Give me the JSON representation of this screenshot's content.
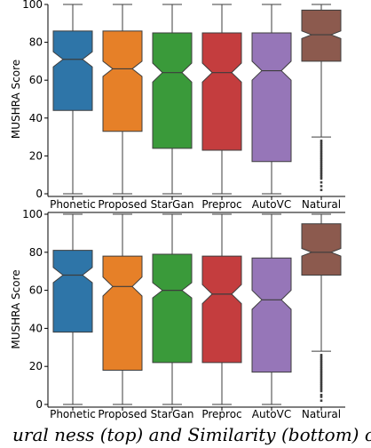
{
  "chart_data": [
    {
      "type": "box",
      "notched": true,
      "ylabel": "MUSHRA Score",
      "ylim": [
        0,
        100
      ],
      "yticks": [
        0,
        20,
        40,
        60,
        80,
        100
      ],
      "categories": [
        "Phonetic",
        "Proposed",
        "StarGan",
        "Preproc",
        "AutoVC",
        "Natural"
      ],
      "colors": [
        "#2e75a8",
        "#e68028",
        "#3a9a3a",
        "#c43d3e",
        "#9676b8",
        "#8c5a4e"
      ],
      "boxes": [
        {
          "whislo": 0,
          "q1": 44,
          "med": 71,
          "q3": 86,
          "whishi": 100,
          "notch_lo": 67,
          "notch_hi": 75,
          "fliers": []
        },
        {
          "whislo": 0,
          "q1": 33,
          "med": 66,
          "q3": 86,
          "whishi": 100,
          "notch_lo": 62,
          "notch_hi": 70,
          "fliers": []
        },
        {
          "whislo": 0,
          "q1": 24,
          "med": 64,
          "q3": 85,
          "whishi": 100,
          "notch_lo": 59,
          "notch_hi": 69,
          "fliers": []
        },
        {
          "whislo": 0,
          "q1": 23,
          "med": 64,
          "q3": 85,
          "whishi": 100,
          "notch_lo": 59,
          "notch_hi": 69,
          "fliers": []
        },
        {
          "whislo": 0,
          "q1": 17,
          "med": 65,
          "q3": 85,
          "whishi": 100,
          "notch_lo": 60,
          "notch_hi": 70,
          "fliers": []
        },
        {
          "whislo": 30,
          "q1": 70,
          "med": 84,
          "q3": 97,
          "whishi": 100,
          "notch_lo": 82,
          "notch_hi": 86,
          "fliers": [
            2,
            4,
            6,
            8,
            9,
            10,
            11,
            12,
            13,
            14,
            15,
            16,
            17,
            18,
            19,
            20,
            21,
            22,
            23,
            24,
            25,
            26,
            27,
            28
          ]
        }
      ]
    },
    {
      "type": "box",
      "notched": true,
      "ylabel": "MUSHRA Score",
      "ylim": [
        0,
        100
      ],
      "yticks": [
        0,
        20,
        40,
        60,
        80,
        100
      ],
      "categories": [
        "Phonetic",
        "Proposed",
        "StarGan",
        "Preproc",
        "AutoVC",
        "Natural"
      ],
      "colors": [
        "#2e75a8",
        "#e68028",
        "#3a9a3a",
        "#c43d3e",
        "#9676b8",
        "#8c5a4e"
      ],
      "boxes": [
        {
          "whislo": 0,
          "q1": 38,
          "med": 68,
          "q3": 81,
          "whishi": 100,
          "notch_lo": 64,
          "notch_hi": 72,
          "fliers": []
        },
        {
          "whislo": 0,
          "q1": 18,
          "med": 62,
          "q3": 78,
          "whishi": 100,
          "notch_lo": 57,
          "notch_hi": 67,
          "fliers": []
        },
        {
          "whislo": 0,
          "q1": 22,
          "med": 60,
          "q3": 79,
          "whishi": 100,
          "notch_lo": 56,
          "notch_hi": 64,
          "fliers": []
        },
        {
          "whislo": 0,
          "q1": 22,
          "med": 58,
          "q3": 78,
          "whishi": 100,
          "notch_lo": 53,
          "notch_hi": 63,
          "fliers": []
        },
        {
          "whislo": 0,
          "q1": 17,
          "med": 55,
          "q3": 77,
          "whishi": 100,
          "notch_lo": 50,
          "notch_hi": 60,
          "fliers": []
        },
        {
          "whislo": 28,
          "q1": 68,
          "med": 80,
          "q3": 95,
          "whishi": 100,
          "notch_lo": 78,
          "notch_hi": 82,
          "fliers": [
            2,
            4,
            5,
            7,
            8,
            9,
            10,
            11,
            12,
            13,
            14,
            15,
            16,
            17,
            18,
            19,
            20,
            21,
            22,
            23,
            24,
            25,
            26
          ]
        }
      ]
    }
  ],
  "caption_text": "ural ness (top) and Similarity (bottom) of"
}
